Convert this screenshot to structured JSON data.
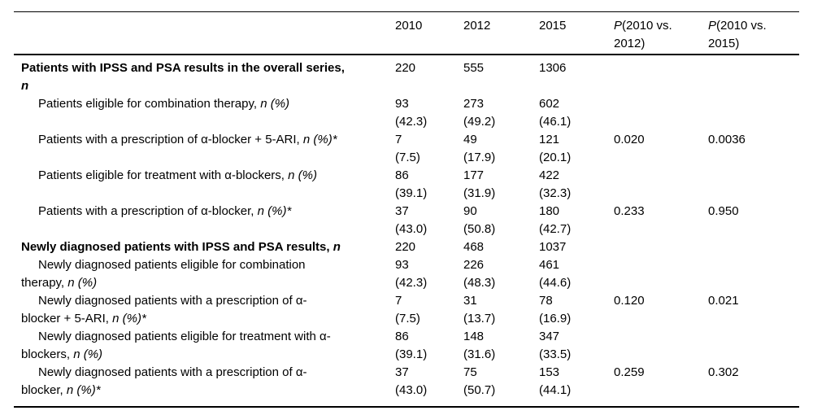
{
  "header": {
    "y2010": "2010",
    "y2012": "2012",
    "y2015": "2015",
    "p1": {
      "p": "P",
      "rest": "(2010 vs.",
      "line2": "2012)"
    },
    "p2": {
      "p": "P",
      "rest": "(2010 vs.",
      "line2": "2015)"
    }
  },
  "rows": [
    {
      "l1": "Patients with IPSS and PSA results in the overall series,",
      "l1i": "",
      "l2": "",
      "l2i": "n",
      "v2010": {
        "n": "220",
        "pct": ""
      },
      "v2012": {
        "n": "555",
        "pct": ""
      },
      "v2015": {
        "n": "1306",
        "pct": ""
      },
      "p1": "",
      "p2": ""
    },
    {
      "l1": "Patients eligible for combination therapy, ",
      "l1i": "n (%)",
      "l2": "",
      "l2i": "",
      "v2010": {
        "n": "93",
        "pct": "(42.3)"
      },
      "v2012": {
        "n": "273",
        "pct": "(49.2)"
      },
      "v2015": {
        "n": "602",
        "pct": "(46.1)"
      },
      "p1": "",
      "p2": ""
    },
    {
      "l1": "Patients with a prescription of α-blocker + 5-ARI, ",
      "l1i": "n (%)*",
      "l2": "",
      "l2i": "",
      "v2010": {
        "n": "7",
        "pct": "(7.5)"
      },
      "v2012": {
        "n": "49",
        "pct": "(17.9)"
      },
      "v2015": {
        "n": "121",
        "pct": "(20.1)"
      },
      "p1": "0.020",
      "p2": "0.0036"
    },
    {
      "l1": "Patients eligible for treatment with α-blockers, ",
      "l1i": "n (%)",
      "l2": "",
      "l2i": "",
      "v2010": {
        "n": "86",
        "pct": "(39.1)"
      },
      "v2012": {
        "n": "177",
        "pct": "(31.9)"
      },
      "v2015": {
        "n": "422",
        "pct": "(32.3)"
      },
      "p1": "",
      "p2": ""
    },
    {
      "l1": "Patients with a prescription of α-blocker, ",
      "l1i": "n (%)*",
      "l2": "",
      "l2i": "",
      "v2010": {
        "n": "37",
        "pct": "(43.0)"
      },
      "v2012": {
        "n": "90",
        "pct": "(50.8)"
      },
      "v2015": {
        "n": "180",
        "pct": "(42.7)"
      },
      "p1": "0.233",
      "p2": "0.950"
    },
    {
      "l1": "Newly diagnosed patients with IPSS and PSA results, ",
      "l1i": "n",
      "l2": "",
      "l2i": "",
      "v2010": {
        "n": "220",
        "pct": ""
      },
      "v2012": {
        "n": "468",
        "pct": ""
      },
      "v2015": {
        "n": "1037",
        "pct": ""
      },
      "p1": "",
      "p2": ""
    },
    {
      "l1": "Newly diagnosed patients eligible for combination",
      "l1i": "",
      "l2": "therapy, ",
      "l2i": "n (%)",
      "v2010": {
        "n": "93",
        "pct": "(42.3)"
      },
      "v2012": {
        "n": "226",
        "pct": "(48.3)"
      },
      "v2015": {
        "n": "461",
        "pct": "(44.6)"
      },
      "p1": "",
      "p2": ""
    },
    {
      "l1": "Newly diagnosed patients with a prescription of α-",
      "l1i": "",
      "l2": "blocker + 5-ARI, ",
      "l2i": "n (%)*",
      "v2010": {
        "n": "7",
        "pct": "(7.5)"
      },
      "v2012": {
        "n": "31",
        "pct": "(13.7)"
      },
      "v2015": {
        "n": "78",
        "pct": "(16.9)"
      },
      "p1": "0.120",
      "p2": "0.021"
    },
    {
      "l1": "Newly diagnosed patients eligible for treatment with α-",
      "l1i": "",
      "l2": "blockers, ",
      "l2i": "n (%)",
      "v2010": {
        "n": "86",
        "pct": "(39.1)"
      },
      "v2012": {
        "n": "148",
        "pct": "(31.6)"
      },
      "v2015": {
        "n": "347",
        "pct": "(33.5)"
      },
      "p1": "",
      "p2": ""
    },
    {
      "l1": "Newly diagnosed patients with a prescription of α-",
      "l1i": "",
      "l2": "blocker, ",
      "l2i": "n (%)*",
      "v2010": {
        "n": "37",
        "pct": "(43.0)"
      },
      "v2012": {
        "n": "75",
        "pct": "(50.7)"
      },
      "v2015": {
        "n": "153",
        "pct": "(44.1)"
      },
      "p1": "0.259",
      "p2": "0.302"
    }
  ]
}
